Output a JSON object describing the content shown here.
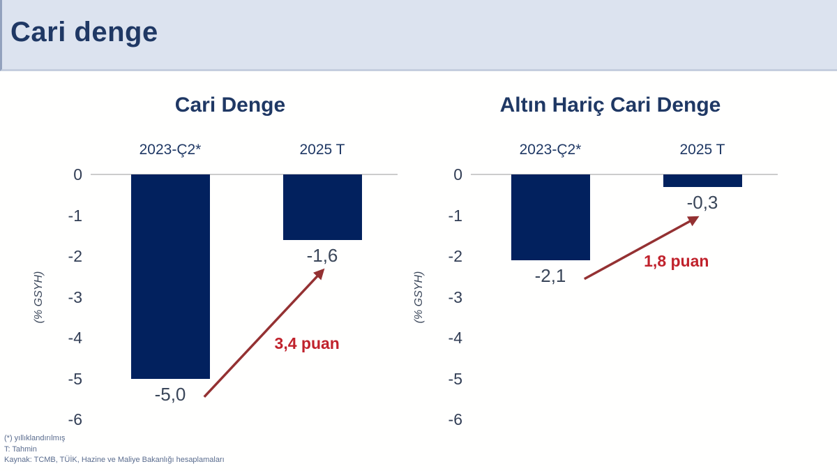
{
  "header": {
    "title": "Cari denge"
  },
  "colors": {
    "bar": "#02215E",
    "navy_title": "#1F3864",
    "tick_label": "#323E55",
    "value_label": "#3A4659",
    "annotation_text": "#C0222C",
    "arrow": "#943132",
    "header_bg": "#DCE3EF",
    "zero_line": "#CCCCCC",
    "footnote_text": "#5A6C8E"
  },
  "footnotes": [
    "(*) yıllıklandırılmış",
    "T: Tahmin",
    "Kaynak: TCMB, TÜİK, Hazine ve Maliye Bakanlığı hesaplamaları"
  ],
  "chart_data": [
    {
      "type": "bar",
      "title": "Cari Denge",
      "categories": [
        "2023-Ç2*",
        "2025 T"
      ],
      "values": [
        -5.0,
        -1.6
      ],
      "value_labels": [
        "-5,0",
        "-1,6"
      ],
      "ylabel": "(% GSYH)",
      "yticks": [
        0,
        -1,
        -2,
        -3,
        -4,
        -5,
        -6
      ],
      "ylim": [
        0,
        -6
      ],
      "grid": "zero-line-only",
      "legend": "none",
      "annotation": {
        "text": "3,4 puan",
        "label_pos": {
          "x": 0.705,
          "y": -4.15
        },
        "arrow": {
          "x1": 0.37,
          "y1": -5.45,
          "x2": 0.755,
          "y2": -2.36
        }
      }
    },
    {
      "type": "bar",
      "title": "Altın Hariç Cari Denge",
      "categories": [
        "2023-Ç2*",
        "2025 T"
      ],
      "values": [
        -2.1,
        -0.3
      ],
      "value_labels": [
        "-2,1",
        "-0,3"
      ],
      "ylabel": "(% GSYH)",
      "yticks": [
        0,
        -1,
        -2,
        -3,
        -4,
        -5,
        -6
      ],
      "ylim": [
        0,
        -6
      ],
      "grid": "zero-line-only",
      "legend": "none",
      "annotation": {
        "text": "1,8 puan",
        "label_pos": {
          "x": 0.67,
          "y": -2.14
        },
        "arrow": {
          "x1": 0.37,
          "y1": -2.56,
          "x2": 0.735,
          "y2": -1.06
        }
      }
    }
  ]
}
